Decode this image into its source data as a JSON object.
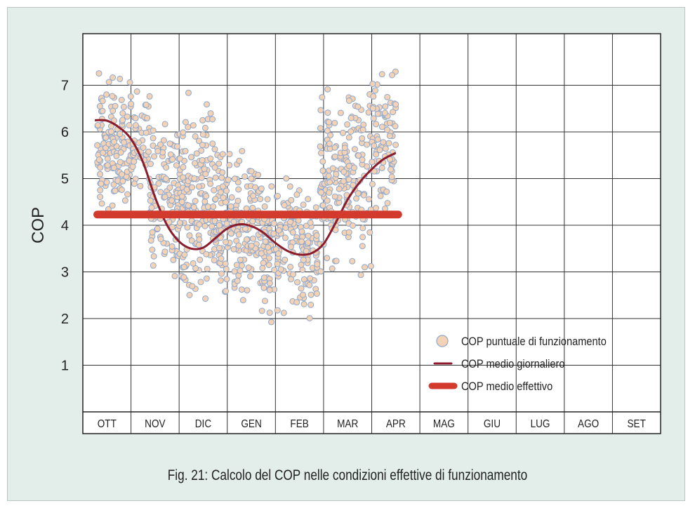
{
  "caption": "Fig. 21: Calcolo del COP nelle condizioni effettive di funzionamento",
  "colors": {
    "background": "#e3eeea",
    "plot_background": "#ffffff",
    "grid": "#333333",
    "marker_fill": "#f3d2b5",
    "marker_stroke": "#8fa8cc",
    "daily_line": "#8b1c2c",
    "effective_line": "#d33a2e"
  },
  "chart_data": {
    "type": "scatter",
    "title": "",
    "ylabel": "COP",
    "xlabel": "",
    "ylim": [
      0,
      8
    ],
    "yticks": [
      1,
      2,
      3,
      4,
      5,
      6,
      7
    ],
    "categories": [
      "OTT",
      "NOV",
      "DIC",
      "GEN",
      "FEB",
      "MAR",
      "APR",
      "MAG",
      "GIU",
      "LUG",
      "AGO",
      "SET"
    ],
    "grid": true,
    "legend_position": "bottom-right",
    "legend": [
      {
        "label": "COP puntuale di funzionamento",
        "kind": "marker"
      },
      {
        "label": "COP medio giornaliero",
        "kind": "thin-line"
      },
      {
        "label": "COP  medio effettivo",
        "kind": "thick-line"
      }
    ],
    "series": [
      {
        "name": "COP puntuale di funzionamento",
        "type": "scatter",
        "bands": [
          {
            "month_start": 0.3,
            "month_end": 1.0,
            "ymin": 4.2,
            "ymax": 7.4,
            "count": 140
          },
          {
            "month_start": 1.0,
            "month_end": 1.4,
            "ymin": 4.6,
            "ymax": 7.1,
            "count": 50
          },
          {
            "month_start": 1.4,
            "month_end": 2.0,
            "ymin": 2.8,
            "ymax": 6.4,
            "count": 110
          },
          {
            "month_start": 2.0,
            "month_end": 2.7,
            "ymin": 2.2,
            "ymax": 7.1,
            "count": 150
          },
          {
            "month_start": 2.7,
            "month_end": 3.7,
            "ymin": 2.3,
            "ymax": 5.8,
            "count": 190
          },
          {
            "month_start": 3.7,
            "month_end": 4.9,
            "ymin": 1.9,
            "ymax": 5.1,
            "count": 200
          },
          {
            "month_start": 4.9,
            "month_end": 6.0,
            "ymin": 2.8,
            "ymax": 7.1,
            "count": 190
          },
          {
            "month_start": 6.0,
            "month_end": 6.5,
            "ymin": 4.1,
            "ymax": 7.4,
            "count": 90
          }
        ]
      },
      {
        "name": "COP medio giornaliero",
        "type": "line",
        "x": [
          0.25,
          0.5,
          0.75,
          1.0,
          1.25,
          1.5,
          1.75,
          2.0,
          2.25,
          2.5,
          2.75,
          3.0,
          3.25,
          3.5,
          3.75,
          4.0,
          4.25,
          4.5,
          4.75,
          5.0,
          5.25,
          5.5,
          5.75,
          6.0,
          6.25,
          6.5
        ],
        "values": [
          6.25,
          6.24,
          6.1,
          5.85,
          5.35,
          4.6,
          4.0,
          3.65,
          3.5,
          3.52,
          3.72,
          3.93,
          4.02,
          3.98,
          3.84,
          3.62,
          3.45,
          3.37,
          3.4,
          3.6,
          4.05,
          4.55,
          4.92,
          5.2,
          5.42,
          5.55
        ]
      },
      {
        "name": "COP  medio effettivo",
        "type": "line",
        "x": [
          0.3,
          6.55
        ],
        "values": [
          4.23,
          4.23
        ]
      }
    ]
  }
}
